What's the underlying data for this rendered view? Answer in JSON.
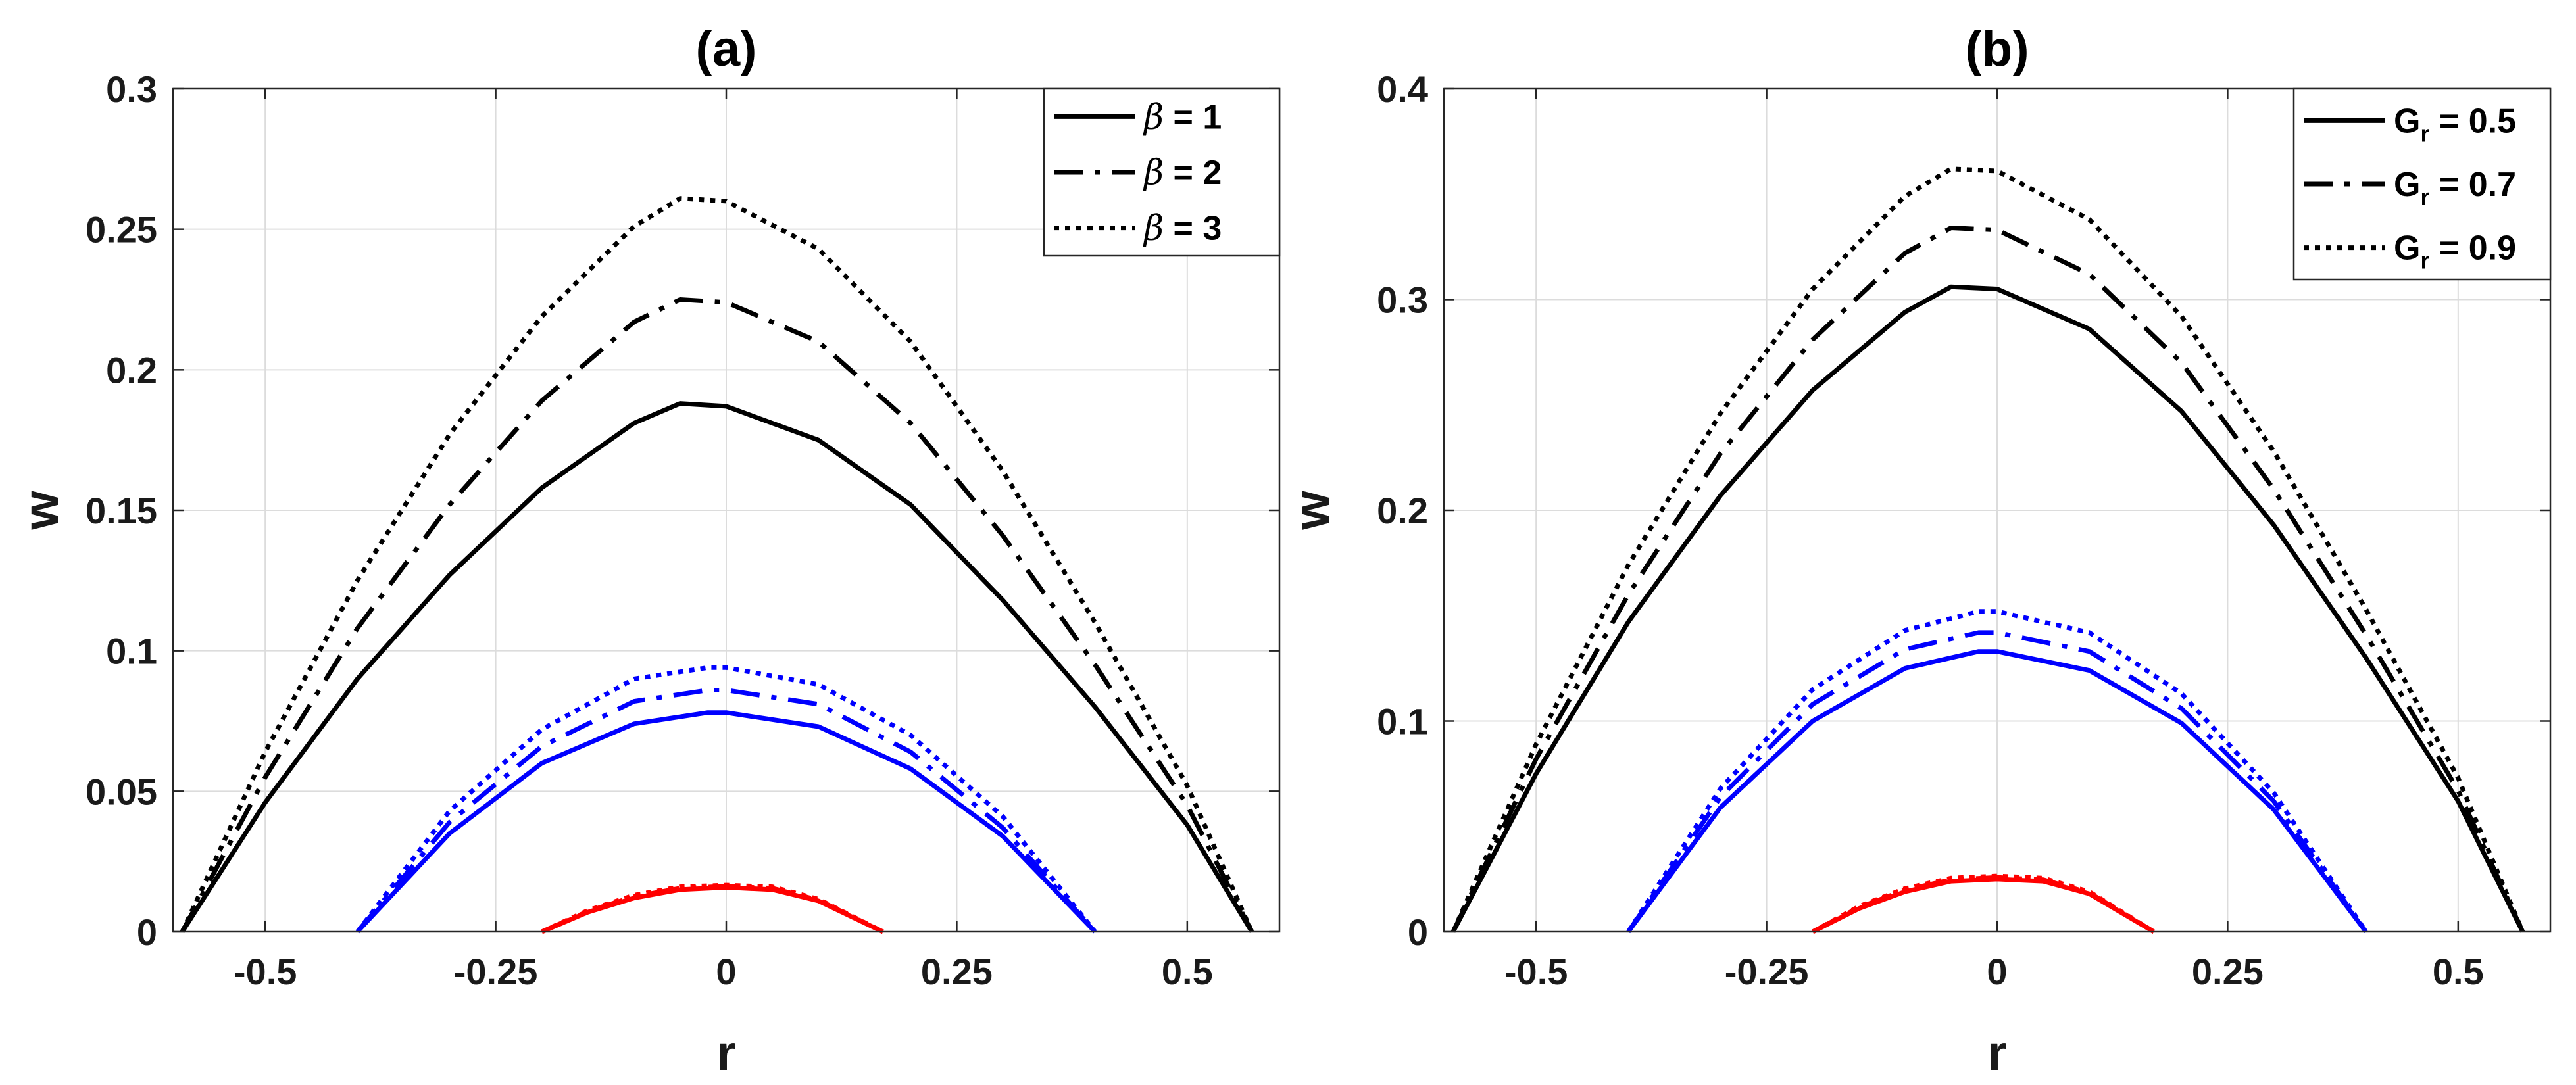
{
  "chart_data": [
    {
      "type": "line",
      "title": "(a)",
      "xlabel": "r",
      "ylabel": "w",
      "xlim": [
        -0.6,
        0.6
      ],
      "ylim": [
        0,
        0.3
      ],
      "grid": true,
      "legend_position": "top-right",
      "xticks": [
        -0.5,
        -0.25,
        0,
        0.25,
        0.5
      ],
      "xtick_labels": [
        "-0.5",
        "-0.25",
        "0",
        "0.25",
        "0.5"
      ],
      "yticks": [
        0,
        0.05,
        0.1,
        0.15,
        0.2,
        0.25,
        0.3
      ],
      "ytick_labels": [
        "0",
        "0.05",
        "0.1",
        "0.15",
        "0.2",
        "0.25",
        "0.3"
      ],
      "legend": [
        {
          "symbol": "β",
          "text": " = 1",
          "style": "solid"
        },
        {
          "symbol": "β",
          "text": " = 2",
          "style": "dashdot"
        },
        {
          "symbol": "β",
          "text": " = 3",
          "style": "dotted"
        }
      ],
      "series": [
        {
          "name": "β = 1 (black)",
          "color": "#000000",
          "style": "solid",
          "r": [
            -0.59,
            -0.5,
            -0.4,
            -0.3,
            -0.2,
            -0.1,
            -0.05,
            0,
            0.1,
            0.2,
            0.3,
            0.4,
            0.5,
            0.57
          ],
          "w": [
            0.0,
            0.046,
            0.09,
            0.127,
            0.158,
            0.181,
            0.188,
            0.187,
            0.175,
            0.152,
            0.118,
            0.08,
            0.038,
            0.0
          ]
        },
        {
          "name": "β = 2 (black)",
          "color": "#000000",
          "style": "dashdot",
          "r": [
            -0.59,
            -0.5,
            -0.4,
            -0.3,
            -0.2,
            -0.1,
            -0.05,
            0,
            0.1,
            0.2,
            0.3,
            0.4,
            0.5,
            0.57
          ],
          "w": [
            0.0,
            0.055,
            0.108,
            0.152,
            0.189,
            0.217,
            0.225,
            0.224,
            0.21,
            0.181,
            0.141,
            0.095,
            0.045,
            0.0
          ]
        },
        {
          "name": "β = 3 (black)",
          "color": "#000000",
          "style": "dotted",
          "r": [
            -0.59,
            -0.5,
            -0.4,
            -0.3,
            -0.2,
            -0.1,
            -0.05,
            0,
            0.1,
            0.2,
            0.3,
            0.4,
            0.5,
            0.57
          ],
          "w": [
            0.0,
            0.064,
            0.125,
            0.177,
            0.219,
            0.251,
            0.261,
            0.26,
            0.243,
            0.21,
            0.164,
            0.11,
            0.052,
            0.0
          ]
        },
        {
          "name": "β = 1 (blue)",
          "color": "#0000ff",
          "style": "solid",
          "r": [
            -0.4,
            -0.3,
            -0.2,
            -0.1,
            -0.02,
            0,
            0.1,
            0.2,
            0.3,
            0.4
          ],
          "w": [
            0.0,
            0.035,
            0.06,
            0.074,
            0.078,
            0.078,
            0.073,
            0.058,
            0.034,
            0.0
          ]
        },
        {
          "name": "β = 2 (blue)",
          "color": "#0000ff",
          "style": "dashdot",
          "r": [
            -0.4,
            -0.3,
            -0.2,
            -0.1,
            -0.02,
            0,
            0.1,
            0.2,
            0.3,
            0.4
          ],
          "w": [
            0.0,
            0.039,
            0.066,
            0.082,
            0.086,
            0.086,
            0.081,
            0.064,
            0.037,
            0.0
          ]
        },
        {
          "name": "β = 3 (blue)",
          "color": "#0000ff",
          "style": "dotted",
          "r": [
            -0.4,
            -0.3,
            -0.2,
            -0.1,
            -0.02,
            0,
            0.1,
            0.2,
            0.3,
            0.4
          ],
          "w": [
            0.0,
            0.043,
            0.072,
            0.09,
            0.094,
            0.094,
            0.088,
            0.07,
            0.041,
            0.0
          ]
        },
        {
          "name": "β = 1 (red)",
          "color": "#ff0000",
          "style": "solid",
          "r": [
            -0.2,
            -0.15,
            -0.1,
            -0.05,
            0,
            0.05,
            0.1,
            0.17
          ],
          "w": [
            0.0,
            0.007,
            0.012,
            0.015,
            0.0158,
            0.015,
            0.011,
            0.0
          ]
        },
        {
          "name": "β = 2 (red)",
          "color": "#ff0000",
          "style": "dashdot",
          "r": [
            -0.2,
            -0.15,
            -0.1,
            -0.05,
            0,
            0.05,
            0.1,
            0.17
          ],
          "w": [
            0.0,
            0.0073,
            0.0125,
            0.0155,
            0.0162,
            0.0155,
            0.0113,
            0.0
          ]
        },
        {
          "name": "β = 3 (red)",
          "color": "#ff0000",
          "style": "dotted",
          "r": [
            -0.2,
            -0.15,
            -0.1,
            -0.05,
            0,
            0.05,
            0.1,
            0.17
          ],
          "w": [
            0.0,
            0.0076,
            0.013,
            0.016,
            0.0166,
            0.016,
            0.0116,
            0.0
          ]
        }
      ]
    },
    {
      "type": "line",
      "title": "(b)",
      "xlabel": "r",
      "ylabel": "w",
      "xlim": [
        -0.6,
        0.6
      ],
      "ylim": [
        0,
        0.4
      ],
      "grid": true,
      "legend_position": "top-right",
      "xticks": [
        -0.5,
        -0.25,
        0,
        0.25,
        0.5
      ],
      "xtick_labels": [
        "-0.5",
        "-0.25",
        "0",
        "0.25",
        "0.5"
      ],
      "yticks": [
        0,
        0.1,
        0.2,
        0.3,
        0.4
      ],
      "ytick_labels": [
        "0",
        "0.1",
        "0.2",
        "0.3",
        "0.4"
      ],
      "legend": [
        {
          "symbol": "G",
          "subscript": "r",
          "text": " = 0.5",
          "style": "solid"
        },
        {
          "symbol": "G",
          "subscript": "r",
          "text": " = 0.7",
          "style": "dashdot"
        },
        {
          "symbol": "G",
          "subscript": "r",
          "text": " = 0.9",
          "style": "dotted"
        }
      ],
      "series": [
        {
          "name": "Gr = 0.5 (black)",
          "color": "#000000",
          "style": "solid",
          "r": [
            -0.59,
            -0.5,
            -0.4,
            -0.3,
            -0.2,
            -0.1,
            -0.05,
            0,
            0.1,
            0.2,
            0.3,
            0.4,
            0.5,
            0.57
          ],
          "w": [
            0.0,
            0.075,
            0.147,
            0.207,
            0.257,
            0.294,
            0.306,
            0.305,
            0.286,
            0.247,
            0.193,
            0.13,
            0.062,
            0.0
          ]
        },
        {
          "name": "Gr = 0.7 (black)",
          "color": "#000000",
          "style": "dashdot",
          "r": [
            -0.59,
            -0.5,
            -0.4,
            -0.3,
            -0.2,
            -0.1,
            -0.05,
            0,
            0.1,
            0.2,
            0.3,
            0.4,
            0.5,
            0.57
          ],
          "w": [
            0.0,
            0.082,
            0.16,
            0.227,
            0.281,
            0.322,
            0.334,
            0.333,
            0.312,
            0.27,
            0.21,
            0.141,
            0.067,
            0.0
          ]
        },
        {
          "name": "Gr = 0.9 (black)",
          "color": "#000000",
          "style": "dotted",
          "r": [
            -0.59,
            -0.5,
            -0.4,
            -0.3,
            -0.2,
            -0.1,
            -0.05,
            0,
            0.1,
            0.2,
            0.3,
            0.4,
            0.5,
            0.57
          ],
          "w": [
            0.0,
            0.089,
            0.174,
            0.246,
            0.305,
            0.349,
            0.362,
            0.361,
            0.338,
            0.292,
            0.228,
            0.153,
            0.073,
            0.0
          ]
        },
        {
          "name": "Gr = 0.5 (blue)",
          "color": "#0000ff",
          "style": "solid",
          "r": [
            -0.4,
            -0.3,
            -0.2,
            -0.1,
            -0.02,
            0,
            0.1,
            0.2,
            0.3,
            0.4
          ],
          "w": [
            0.0,
            0.059,
            0.1,
            0.125,
            0.133,
            0.133,
            0.124,
            0.099,
            0.058,
            0.0
          ]
        },
        {
          "name": "Gr = 0.7 (blue)",
          "color": "#0000ff",
          "style": "dashdot",
          "r": [
            -0.4,
            -0.3,
            -0.2,
            -0.1,
            -0.02,
            0,
            0.1,
            0.2,
            0.3,
            0.4
          ],
          "w": [
            0.0,
            0.064,
            0.108,
            0.134,
            0.142,
            0.142,
            0.133,
            0.106,
            0.062,
            0.0
          ]
        },
        {
          "name": "Gr = 0.9 (blue)",
          "color": "#0000ff",
          "style": "dotted",
          "r": [
            -0.4,
            -0.3,
            -0.2,
            -0.1,
            -0.02,
            0,
            0.1,
            0.2,
            0.3,
            0.4
          ],
          "w": [
            0.0,
            0.068,
            0.115,
            0.143,
            0.152,
            0.152,
            0.142,
            0.113,
            0.066,
            0.0
          ]
        },
        {
          "name": "Gr = 0.5 (red)",
          "color": "#ff0000",
          "style": "solid",
          "r": [
            -0.2,
            -0.15,
            -0.1,
            -0.05,
            0,
            0.05,
            0.1,
            0.17
          ],
          "w": [
            0.0,
            0.011,
            0.019,
            0.024,
            0.025,
            0.024,
            0.018,
            0.0
          ]
        },
        {
          "name": "Gr = 0.7 (red)",
          "color": "#ff0000",
          "style": "dashdot",
          "r": [
            -0.2,
            -0.15,
            -0.1,
            -0.05,
            0,
            0.05,
            0.1,
            0.17
          ],
          "w": [
            0.0,
            0.0115,
            0.0198,
            0.0247,
            0.0258,
            0.0247,
            0.0185,
            0.0
          ]
        },
        {
          "name": "Gr = 0.9 (red)",
          "color": "#ff0000",
          "style": "dotted",
          "r": [
            -0.2,
            -0.15,
            -0.1,
            -0.05,
            0,
            0.05,
            0.1,
            0.17
          ],
          "w": [
            0.0,
            0.012,
            0.0205,
            0.0255,
            0.0265,
            0.0255,
            0.019,
            0.0
          ]
        }
      ]
    }
  ]
}
